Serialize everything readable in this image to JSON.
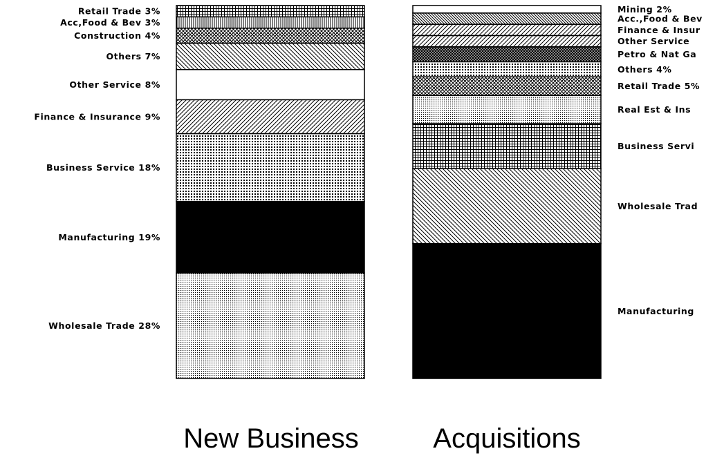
{
  "chart_data": [
    {
      "type": "stacked-bar-100",
      "title": "New Business",
      "unit": "%",
      "segments": [
        {
          "label": "Wholesale Trade 28%",
          "name": "Wholesale Trade",
          "value": 28,
          "pattern": "fine-dots"
        },
        {
          "label": "Manufacturing 19%",
          "name": "Manufacturing",
          "value": 19,
          "pattern": "solid"
        },
        {
          "label": "Business Service 18%",
          "name": "Business Service",
          "value": 18,
          "pattern": "grid-dots"
        },
        {
          "label": "Finance & Insurance 9%",
          "name": "Finance & Insurance",
          "value": 9,
          "pattern": "diag-right"
        },
        {
          "label": "Other Service 8%",
          "name": "Other Service",
          "value": 8,
          "pattern": "blank"
        },
        {
          "label": "Others 7%",
          "name": "Others",
          "value": 7,
          "pattern": "diag-left"
        },
        {
          "label": "Construction 4%",
          "name": "Construction",
          "value": 4,
          "pattern": "crosshatch"
        },
        {
          "label": "Acc,Food & Bev 3%",
          "name": "Acc,Food & Bev",
          "value": 3,
          "pattern": "vlines"
        },
        {
          "label": "Retail Trade 3%",
          "name": "Retail Trade",
          "value": 3,
          "pattern": "grid"
        }
      ]
    },
    {
      "type": "stacked-bar-100",
      "title": "Acquisitions",
      "unit": "%",
      "segments": [
        {
          "label": "Manufacturing",
          "name": "Manufacturing",
          "value": 36,
          "pattern": "solid"
        },
        {
          "label": "Wholesale Trad",
          "name": "Wholesale Trade",
          "value": 20,
          "pattern": "diag-left"
        },
        {
          "label": "Business Servi",
          "name": "Business Service",
          "value": 12,
          "pattern": "grid"
        },
        {
          "label": "Real Est & Ins",
          "name": "Real Est & Ins",
          "value": 7.5,
          "pattern": "fine-dots"
        },
        {
          "label": "Retail Trade 5%",
          "name": "Retail Trade",
          "value": 5,
          "pattern": "crosshatch"
        },
        {
          "label": "Others 4%",
          "name": "Others",
          "value": 4,
          "pattern": "grid-dots"
        },
        {
          "label": "Petro & Nat Ga",
          "name": "Petro & Nat Gas",
          "value": 4,
          "pattern": "crosshatch-dark"
        },
        {
          "label": "Other Service",
          "name": "Other Service",
          "value": 3,
          "pattern": "diag-right"
        },
        {
          "label": "Finance & Insur",
          "name": "Finance & Insurance",
          "value": 3,
          "pattern": "diag-right"
        },
        {
          "label": "Acc.,Food & Bev",
          "name": "Acc.,Food & Bev",
          "value": 3,
          "pattern": "diag-left-dense"
        },
        {
          "label": "Mining 2%",
          "name": "Mining",
          "value": 2,
          "pattern": "blank"
        }
      ]
    }
  ]
}
